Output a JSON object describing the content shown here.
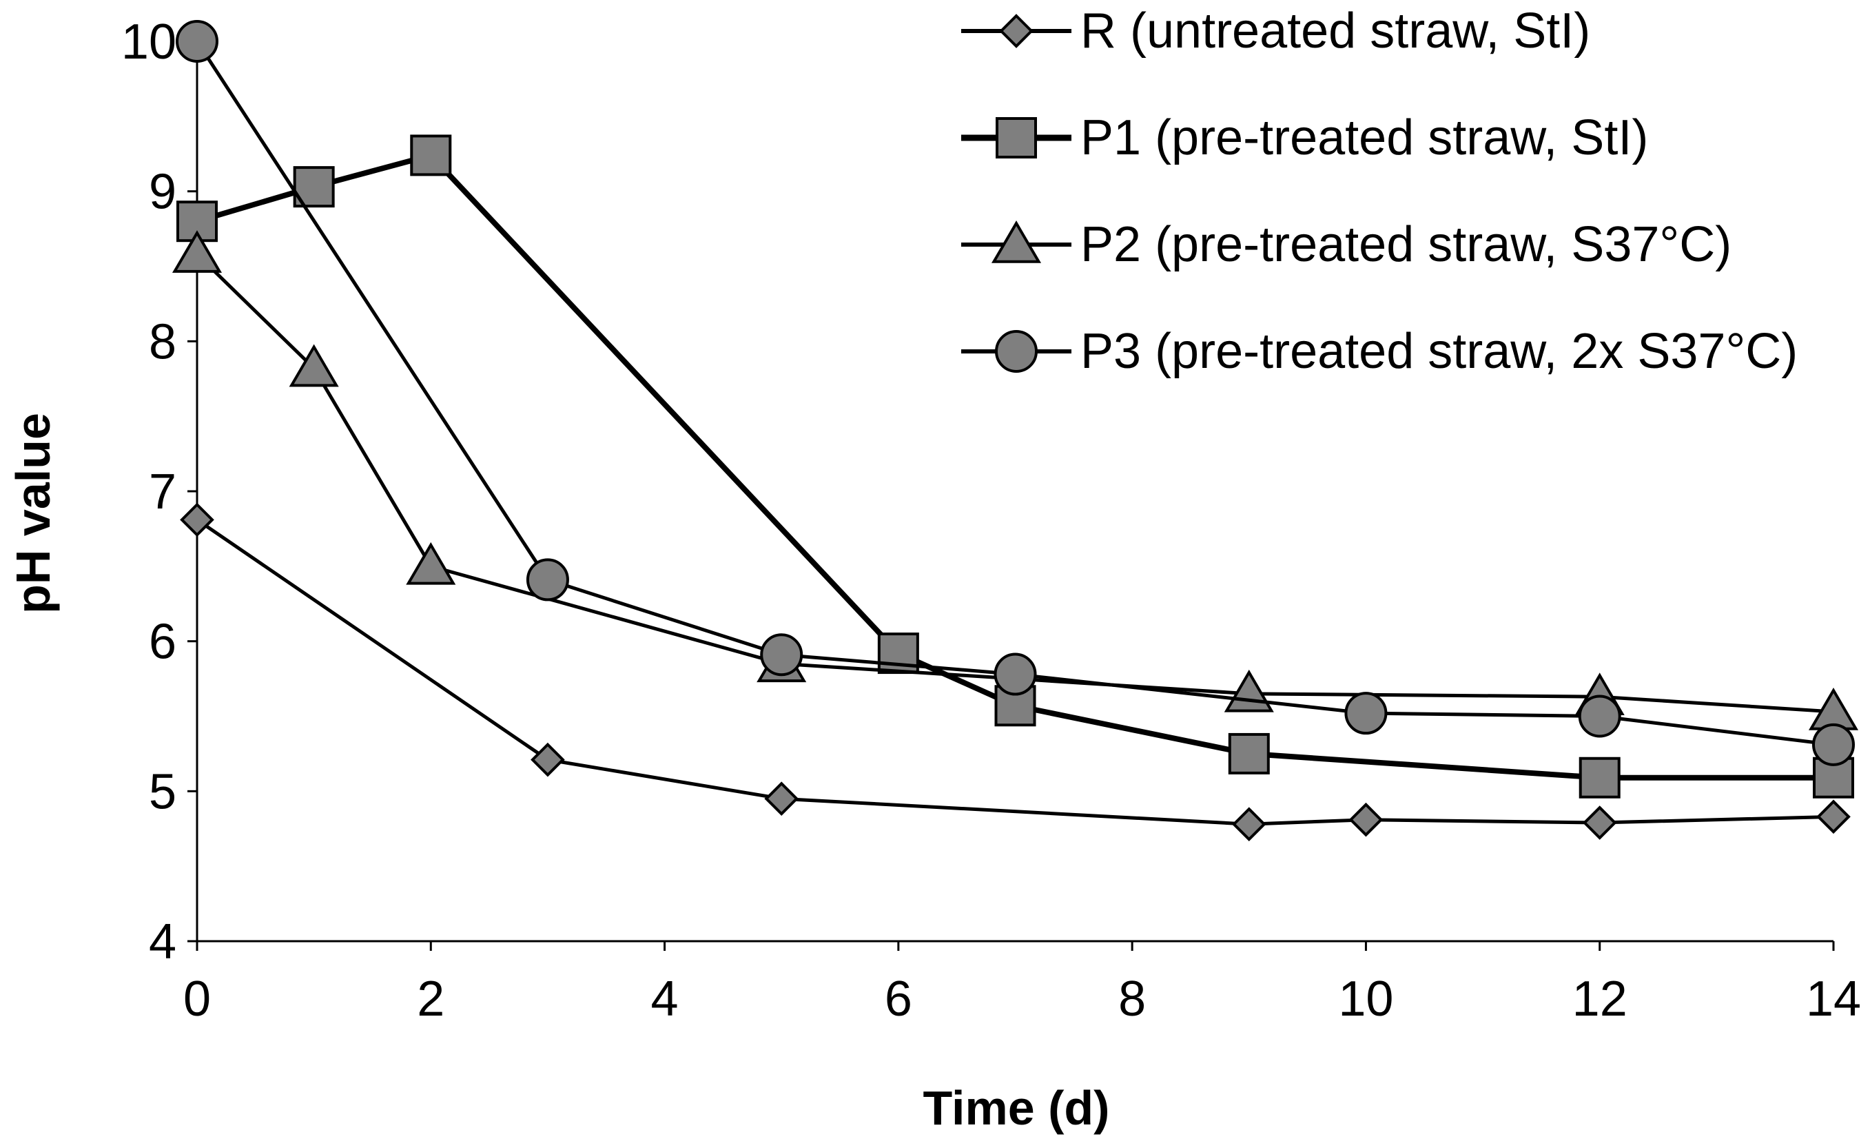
{
  "chart_data": {
    "type": "line",
    "title": "",
    "xlabel": "Time (d)",
    "ylabel": "pH value",
    "xlim": [
      0,
      14
    ],
    "ylim": [
      4,
      10
    ],
    "xticks": [
      "0",
      "2",
      "4",
      "6",
      "8",
      "10",
      "12",
      "14"
    ],
    "yticks": [
      "4",
      "5",
      "6",
      "7",
      "8",
      "9",
      "10"
    ],
    "grid": false,
    "legend_position": "top-right",
    "series": [
      {
        "name": "R (untreated straw, StI)",
        "marker": "diamond",
        "x": [
          0,
          3,
          5,
          9,
          10,
          12,
          14
        ],
        "y": [
          6.81,
          5.21,
          4.95,
          4.78,
          4.81,
          4.79,
          4.83
        ]
      },
      {
        "name": "P1 (pre-treated straw, StI)",
        "marker": "square",
        "x": [
          0,
          1,
          2,
          6,
          7,
          9,
          12,
          14
        ],
        "y": [
          8.8,
          9.03,
          9.24,
          5.92,
          5.57,
          5.25,
          5.09,
          5.09
        ]
      },
      {
        "name": "P2 (pre-treated straw, S37°C)",
        "marker": "triangle",
        "x": [
          0,
          1,
          2,
          5,
          9,
          12,
          14
        ],
        "y": [
          8.58,
          7.82,
          6.5,
          5.85,
          5.65,
          5.63,
          5.53
        ]
      },
      {
        "name": "P3 (pre-treated straw, 2x S37°C)",
        "marker": "circle",
        "x": [
          0,
          3,
          5,
          7,
          10,
          12,
          14
        ],
        "y": [
          10.0,
          6.41,
          5.91,
          5.78,
          5.52,
          5.5,
          5.31
        ]
      }
    ]
  },
  "colors": {
    "marker_fill": "#7f7f7f",
    "line": "#000000"
  }
}
